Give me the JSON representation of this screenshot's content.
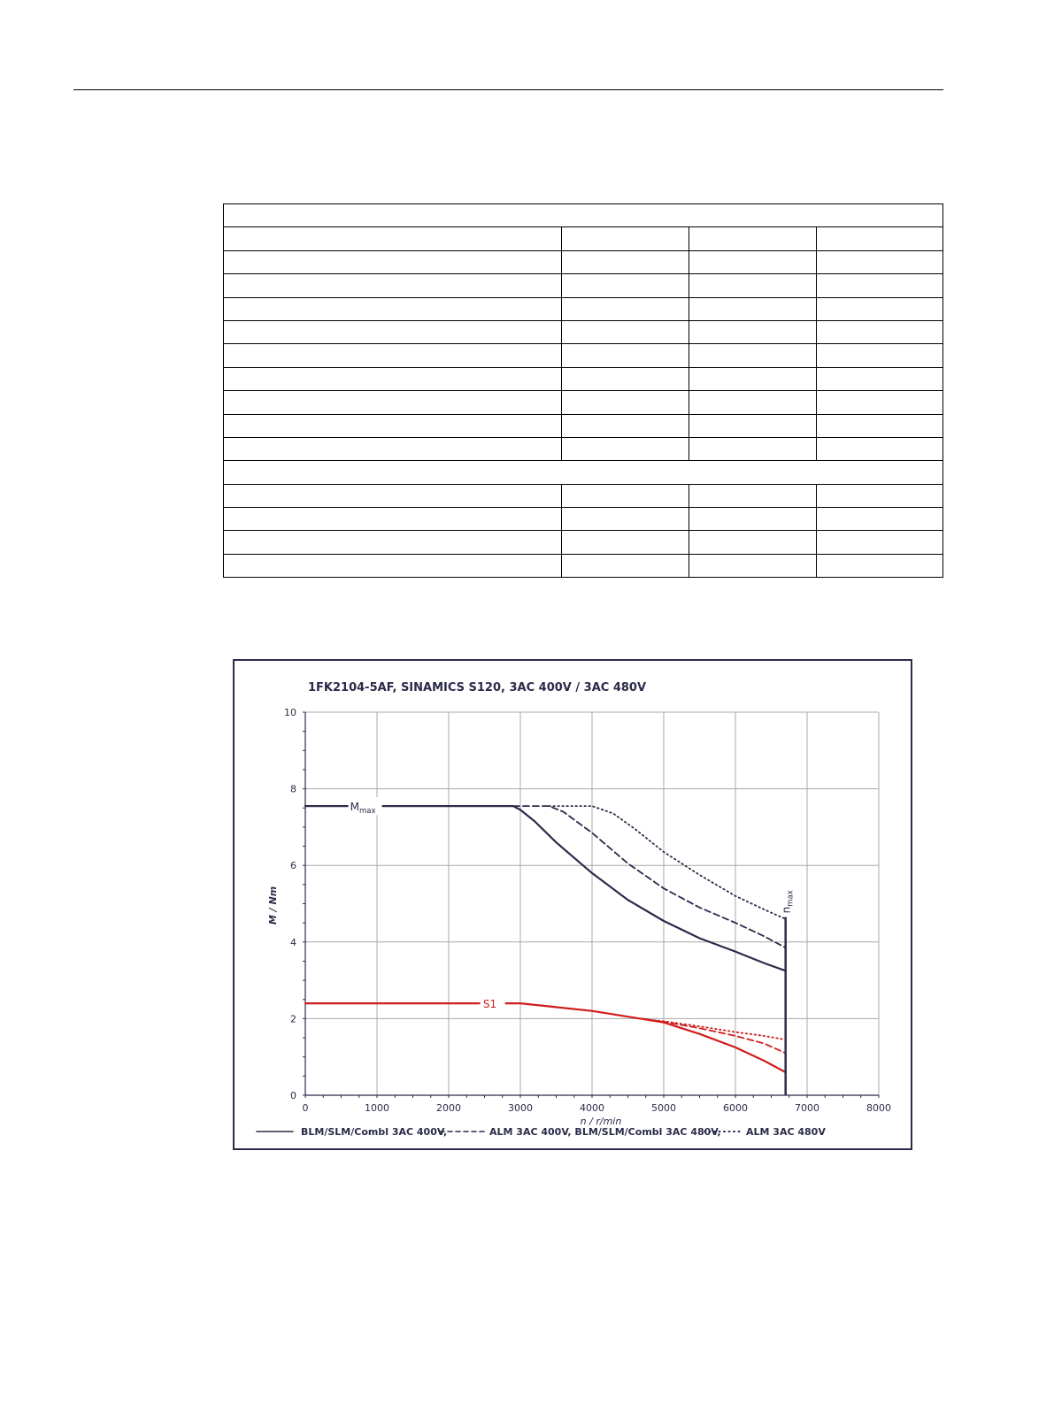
{
  "colors": {
    "navy": "#2b2b4a",
    "red": "#d01c1c",
    "grid": "#a8a8a8"
  },
  "table": {
    "row_types": [
      "full",
      "cols",
      "cols",
      "cols",
      "cols",
      "cols",
      "cols",
      "cols",
      "cols",
      "cols",
      "cols",
      "full",
      "cols",
      "cols",
      "cols",
      "cols"
    ]
  },
  "chart_data": {
    "type": "line",
    "title": "1FK2104-5AF,  SINAMICS S120,  3AC 400V / 3AC 480V",
    "xlabel": "n / r/min",
    "ylabel": "M / Nm",
    "xlim": [
      0,
      8000
    ],
    "ylim": [
      0,
      10
    ],
    "x_ticks": [
      0,
      1000,
      2000,
      3000,
      4000,
      5000,
      6000,
      7000,
      8000
    ],
    "y_ticks": [
      0,
      2,
      4,
      6,
      8,
      10
    ],
    "grid": true,
    "legend_position": "bottom",
    "legend": [
      {
        "style": "solid",
        "label": "BLM/SLM/Combl 3AC 400V,"
      },
      {
        "style": "dashed",
        "label": "ALM 3AC 400V, BLM/SLM/Combl 3AC 480V,"
      },
      {
        "style": "dotted",
        "label": "ALM 3AC 480V"
      }
    ],
    "annotations": {
      "mmax_main": "M",
      "mmax_sub": "max",
      "s1": "S1",
      "nmax_main": "n",
      "nmax_sub": "max"
    },
    "nmax": 6700,
    "series": [
      {
        "curve": "Mmax",
        "style": "solid",
        "color": "navy",
        "x": [
          0,
          2900,
          3000,
          3200,
          3500,
          4000,
          4500,
          5000,
          5500,
          6000,
          6400,
          6700
        ],
        "y": [
          7.55,
          7.55,
          7.45,
          7.15,
          6.6,
          5.8,
          5.1,
          4.55,
          4.1,
          3.75,
          3.45,
          3.25
        ]
      },
      {
        "curve": "Mmax",
        "style": "dashed",
        "color": "navy",
        "x": [
          2900,
          3400,
          3600,
          4000,
          4500,
          5000,
          5500,
          6000,
          6400,
          6700
        ],
        "y": [
          7.55,
          7.55,
          7.4,
          6.85,
          6.05,
          5.4,
          4.9,
          4.5,
          4.15,
          3.85
        ]
      },
      {
        "curve": "Mmax",
        "style": "dotted",
        "color": "navy",
        "x": [
          3400,
          4000,
          4300,
          4600,
          5000,
          5500,
          6000,
          6400,
          6700
        ],
        "y": [
          7.55,
          7.55,
          7.35,
          6.95,
          6.35,
          5.75,
          5.2,
          4.85,
          4.6
        ]
      },
      {
        "curve": "S1",
        "style": "solid",
        "color": "red",
        "x": [
          0,
          3000,
          3500,
          4000,
          4500,
          5000,
          5500,
          6000,
          6400,
          6700
        ],
        "y": [
          2.4,
          2.4,
          2.3,
          2.2,
          2.05,
          1.9,
          1.6,
          1.25,
          0.9,
          0.6
        ]
      },
      {
        "curve": "S1",
        "style": "dashed",
        "color": "red",
        "x": [
          4700,
          5000,
          5500,
          6000,
          6400,
          6700
        ],
        "y": [
          2.0,
          1.92,
          1.75,
          1.55,
          1.35,
          1.1
        ]
      },
      {
        "curve": "S1",
        "style": "dotted",
        "color": "red",
        "x": [
          4800,
          5000,
          5500,
          6000,
          6400,
          6700
        ],
        "y": [
          1.97,
          1.93,
          1.8,
          1.65,
          1.55,
          1.45
        ]
      }
    ]
  }
}
